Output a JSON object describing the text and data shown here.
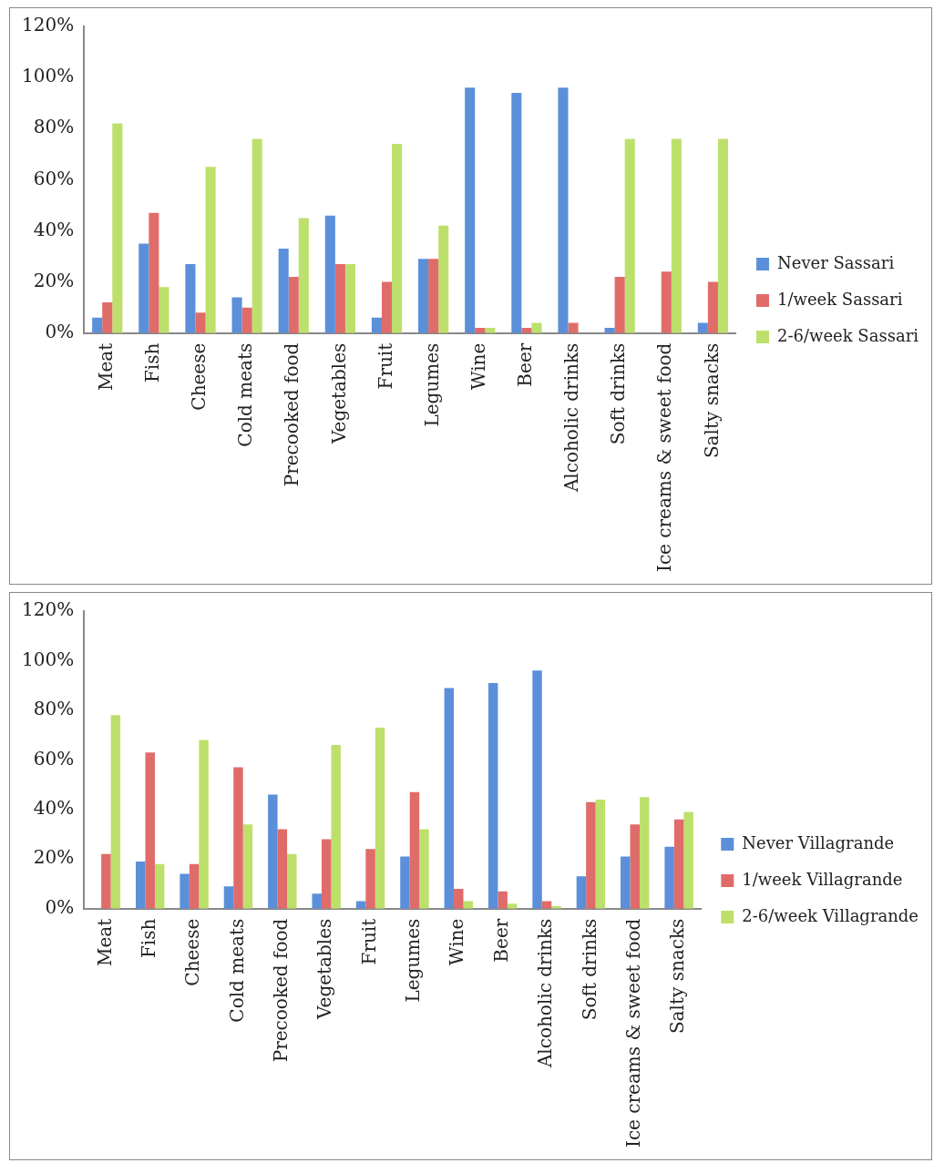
{
  "chart_data": [
    {
      "type": "bar",
      "categories": [
        "Meat",
        "Fish",
        "Cheese",
        "Cold meats",
        "Precooked food",
        "Vegetables",
        "Fruit",
        "Legumes",
        "Wine",
        "Beer",
        "Alcoholic drinks",
        "Soft drinks",
        "Ice creams & sweet food",
        "Salty snacks"
      ],
      "series": [
        {
          "name": "Never Sassari",
          "color": "#5b8fd9",
          "values": [
            6,
            35,
            27,
            14,
            33,
            46,
            6,
            29,
            96,
            94,
            96,
            2,
            0,
            4
          ]
        },
        {
          "name": "1/week Sassari",
          "color": "#e06c6a",
          "values": [
            12,
            47,
            8,
            10,
            22,
            27,
            20,
            29,
            2,
            2,
            4,
            22,
            24,
            20
          ]
        },
        {
          "name": "2-6/week Sassari",
          "color": "#bde06c",
          "values": [
            82,
            18,
            65,
            76,
            45,
            27,
            74,
            42,
            2,
            4,
            0,
            76,
            76,
            76
          ]
        }
      ],
      "ylim": [
        0,
        120
      ],
      "yticks": [
        {
          "value": 0,
          "label": "0%"
        },
        {
          "value": 20,
          "label": "20%"
        },
        {
          "value": 40,
          "label": "40%"
        },
        {
          "value": 60,
          "label": "60%"
        },
        {
          "value": 80,
          "label": "80%"
        },
        {
          "value": 100,
          "label": "100%"
        },
        {
          "value": 120,
          "label": "120%"
        }
      ],
      "grid": false,
      "legend": "right"
    },
    {
      "type": "bar",
      "categories": [
        "Meat",
        "Fish",
        "Cheese",
        "Cold meats",
        "Precooked food",
        "Vegetables",
        "Fruit",
        "Legumes",
        "Wine",
        "Beer",
        "Alcoholic drinks",
        "Soft drinks",
        "Ice creams & sweet food",
        "Salty snacks"
      ],
      "series": [
        {
          "name": "Never Villagrande",
          "color": "#5b8fd9",
          "values": [
            0,
            19,
            14,
            9,
            46,
            6,
            3,
            21,
            89,
            91,
            96,
            13,
            21,
            25
          ]
        },
        {
          "name": "1/week Villagrande",
          "color": "#e06c6a",
          "values": [
            22,
            63,
            18,
            57,
            32,
            28,
            24,
            47,
            8,
            7,
            3,
            43,
            34,
            36
          ]
        },
        {
          "name": "2-6/week Villagrande",
          "color": "#bde06c",
          "values": [
            78,
            18,
            68,
            34,
            22,
            66,
            73,
            32,
            3,
            2,
            1,
            44,
            45,
            39
          ]
        }
      ],
      "ylim": [
        0,
        120
      ],
      "yticks": [
        {
          "value": 0,
          "label": "0%"
        },
        {
          "value": 20,
          "label": "20%"
        },
        {
          "value": 40,
          "label": "40%"
        },
        {
          "value": 60,
          "label": "60%"
        },
        {
          "value": 80,
          "label": "80%"
        },
        {
          "value": 100,
          "label": "100%"
        },
        {
          "value": 120,
          "label": "120%"
        }
      ],
      "grid": false,
      "legend": "right"
    }
  ]
}
